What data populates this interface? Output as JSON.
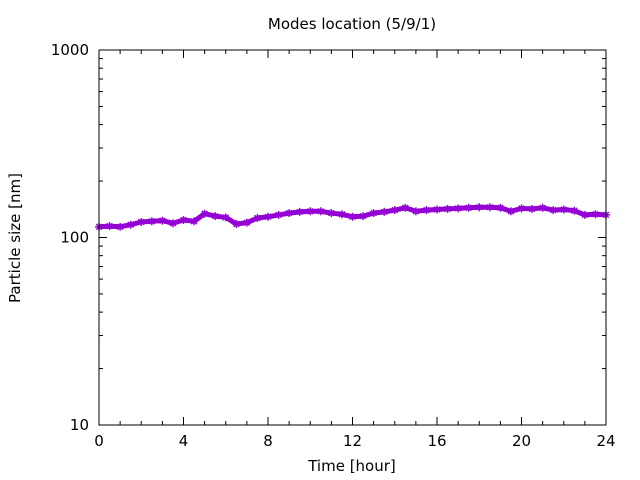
{
  "chart_data": {
    "type": "line",
    "title": "Modes location (5/9/1)",
    "xlabel": "Time [hour]",
    "ylabel": "Particle size [nm]",
    "xlim": [
      0,
      24
    ],
    "ylim": [
      10,
      1000
    ],
    "yscale": "log",
    "x_ticks": [
      0,
      4,
      8,
      12,
      16,
      20,
      24
    ],
    "x_tick_labels": [
      "0",
      "4",
      "8",
      "12",
      "16",
      "20",
      "24"
    ],
    "y_ticks": [
      10,
      100,
      1000
    ],
    "y_tick_labels": [
      "10",
      "100",
      "1000"
    ],
    "grid": false,
    "legend": "none",
    "series_color": "#9400d3",
    "series": [
      {
        "x": [
          0,
          0.5,
          1,
          1.5,
          2,
          2.5,
          3,
          3.5,
          4,
          4.5,
          5,
          5.5,
          6,
          6.5,
          7,
          7.5,
          8,
          8.5,
          9,
          9.5,
          10,
          10.5,
          11,
          11.5,
          12,
          12.5,
          13,
          13.5,
          14,
          14.5,
          15,
          15.5,
          16,
          16.5,
          17,
          17.5,
          18,
          18.5,
          19,
          19.5,
          20,
          20.5,
          21,
          21.5,
          22,
          22.5,
          23,
          23.5,
          24
        ],
        "y": [
          114,
          115,
          114,
          117,
          121,
          122,
          123,
          119,
          124,
          122,
          134,
          130,
          128,
          118,
          120,
          127,
          129,
          132,
          135,
          137,
          138,
          138,
          135,
          133,
          129,
          130,
          135,
          137,
          140,
          144,
          138,
          140,
          141,
          142,
          143,
          144,
          145,
          145,
          144,
          138,
          143,
          142,
          144,
          140,
          141,
          139,
          132,
          133,
          132
        ]
      }
    ]
  }
}
